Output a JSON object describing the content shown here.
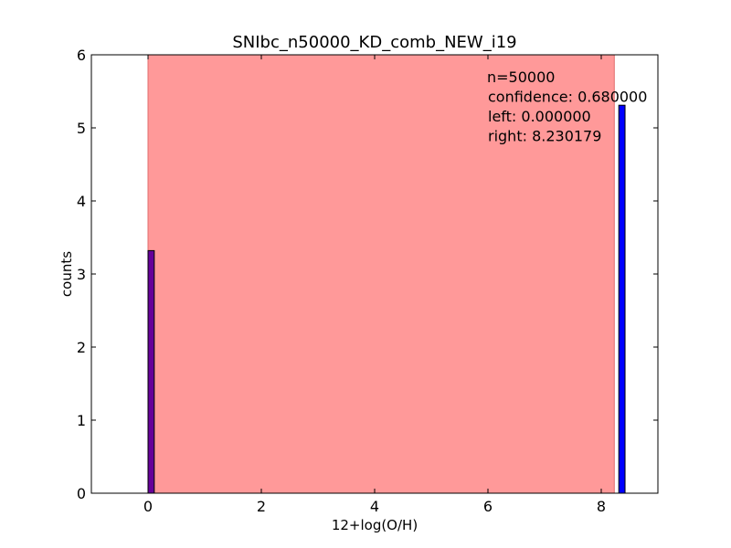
{
  "chart_data": {
    "type": "bar",
    "title": "SNIbc_n50000_KD_comb_NEW_i19",
    "xlabel": "12+log(O/H)",
    "ylabel": "counts",
    "xlim": [
      -1,
      9
    ],
    "ylim": [
      0,
      6
    ],
    "xticks": [
      "0",
      "2",
      "4",
      "6",
      "8"
    ],
    "yticks": [
      "0",
      "1",
      "2",
      "3",
      "4",
      "5",
      "6"
    ],
    "grid": false,
    "confidence_region": {
      "left": 0.0,
      "right": 8.230179,
      "color": "#ff9999"
    },
    "series": [
      {
        "color": "#0000ff",
        "bars": [
          {
            "x0": 0.0,
            "x1": 0.11,
            "value": 3.32,
            "color": "#660099"
          },
          {
            "x0": 8.31,
            "x1": 8.42,
            "value": 5.31,
            "color": "#0000ff"
          }
        ]
      }
    ],
    "annotations": [
      "n=50000",
      "confidence: 0.680000",
      "left: 0.000000",
      "right: 8.230179"
    ]
  }
}
